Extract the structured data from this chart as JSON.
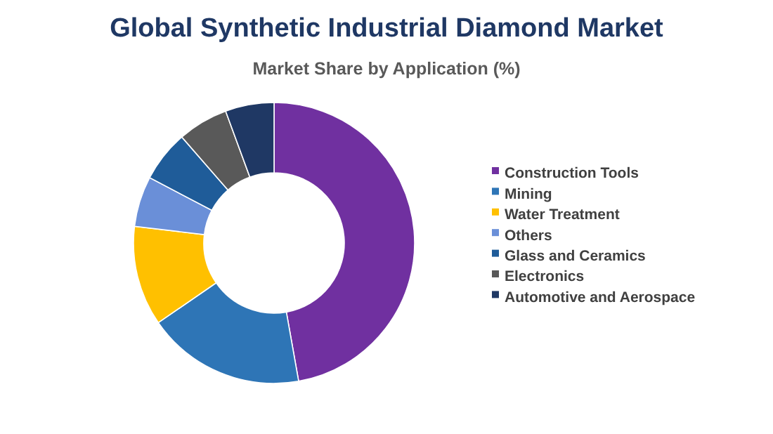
{
  "chart_data": {
    "type": "donut",
    "title": "Global Synthetic Industrial Diamond Market",
    "subtitle": "Market Share by Application (%)",
    "categories": [
      "Construction Tools",
      "Mining",
      "Water Treatment",
      "Others",
      "Glass and Ceramics",
      "Electronics",
      "Automotive and Aerospace"
    ],
    "values": [
      47.2,
      18.2,
      11.5,
      5.8,
      5.9,
      5.8,
      5.6
    ],
    "colors": [
      "#7030a0",
      "#2e75b6",
      "#ffc000",
      "#6a8fd8",
      "#1f5c99",
      "#595959",
      "#1f3864"
    ],
    "legend": "right"
  }
}
